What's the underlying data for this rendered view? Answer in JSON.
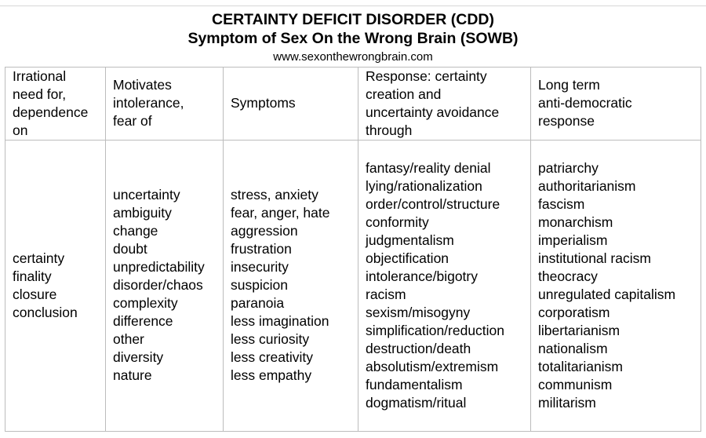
{
  "document": {
    "title": "CERTAINTY DEFICIT DISORDER (CDD)",
    "subtitle": "Symptom of Sex On the Wrong Brain (SOWB)",
    "url": "www.sexonthewrongbrain.com"
  },
  "table": {
    "headers": [
      [
        "Irrational",
        "need for,",
        "dependence",
        "on"
      ],
      [
        "Motivates",
        "intolerance,",
        "fear of"
      ],
      [
        "Symptoms"
      ],
      [
        "Response: certainty",
        "creation and",
        "uncertainty avoidance",
        "through"
      ],
      [
        "Long term",
        "anti-democratic",
        "response"
      ]
    ],
    "columns": [
      [
        "certainty",
        "finality",
        "closure",
        "conclusion"
      ],
      [
        "uncertainty",
        "ambiguity",
        "change",
        "doubt",
        "unpredictability",
        "disorder/chaos",
        "complexity",
        "difference",
        "other",
        "diversity",
        "nature"
      ],
      [
        "stress, anxiety",
        "fear, anger, hate",
        "aggression",
        "frustration",
        "insecurity",
        "suspicion",
        "paranoia",
        "less imagination",
        "less curiosity",
        "less creativity",
        "less empathy"
      ],
      [
        "fantasy/reality denial",
        "lying/rationalization",
        "order/control/structure",
        "conformity",
        "judgmentalism",
        "objectification",
        "intolerance/bigotry",
        "racism",
        "sexism/misogyny",
        "simplification/reduction",
        "destruction/death",
        "absolutism/extremism",
        "fundamentalism",
        "dogmatism/ritual"
      ],
      [
        "patriarchy",
        "authoritarianism",
        "fascism",
        "monarchism",
        "imperialism",
        "institutional racism",
        "theocracy",
        "unregulated capitalism",
        "corporatism",
        "libertarianism",
        "nationalism",
        "totalitarianism",
        "communism",
        "militarism"
      ]
    ]
  }
}
